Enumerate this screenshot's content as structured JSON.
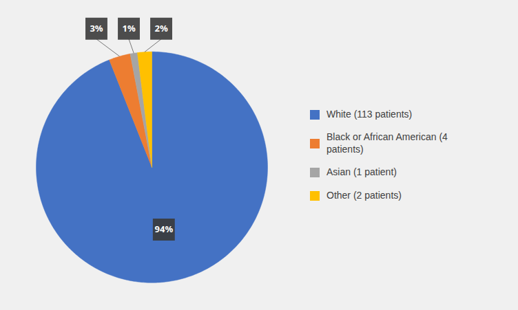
{
  "chart_data": {
    "type": "pie",
    "categories": [
      "White (113 patients)",
      "Black or African American (4\npatients)",
      "Asian (1 patient)",
      "Other (2 patients)"
    ],
    "values": [
      94,
      3,
      1,
      2
    ],
    "value_labels": [
      "94%",
      "3%",
      "1%",
      "2%"
    ],
    "colors": [
      "#4472C4",
      "#ED7D31",
      "#A5A5A5",
      "#FFC000"
    ],
    "data_labels": true,
    "legend": "right"
  }
}
